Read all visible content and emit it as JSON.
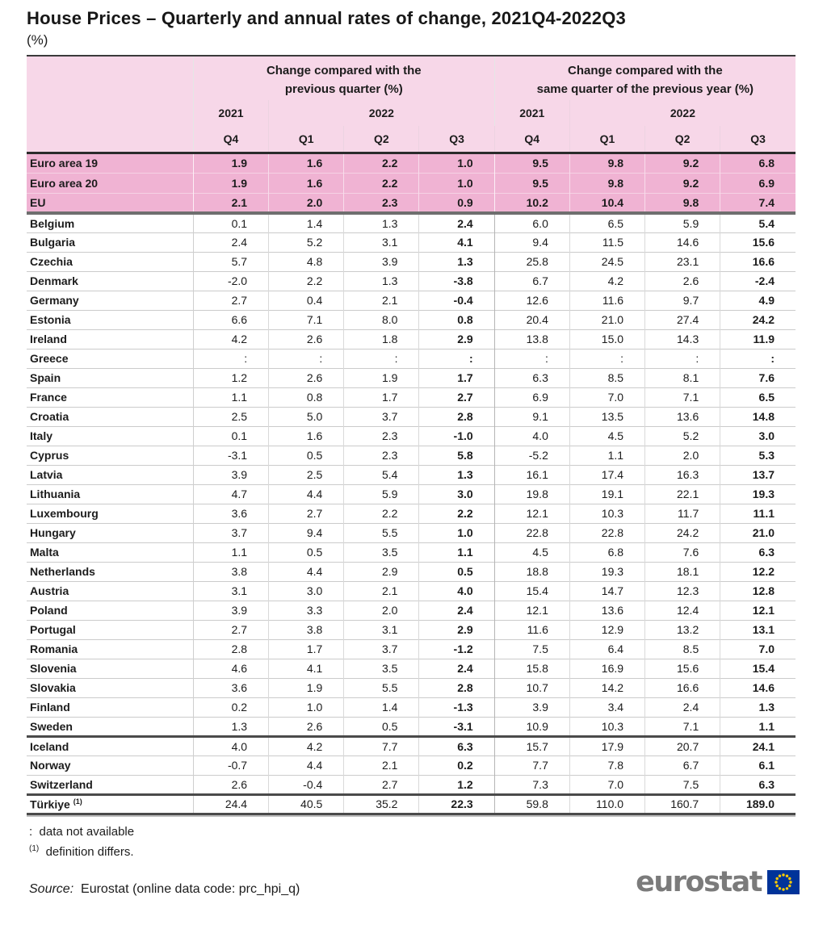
{
  "title": "House Prices – Quarterly and annual rates of change, 2021Q4-2022Q3",
  "unit_label": "(%)",
  "colors": {
    "header_background": "#f7d7e8",
    "aggregate_row_background": "#f0b3d3",
    "table_line_dark": "#3a3a3a",
    "logo_text_gray": "#7b7b7b",
    "eu_flag_blue": "#003399",
    "eu_star_yellow": "#ffcc00"
  },
  "chart_data": {
    "type": "table",
    "title": "House Prices – Quarterly and annual rates of change, 2021Q4-2022Q3",
    "unit": "%",
    "header": {
      "group1_line1": "Change compared with the",
      "group1_line2": "previous quarter (%)",
      "group2_line1": "Change compared with the",
      "group2_line2": "same quarter of the previous year (%)",
      "years": {
        "g1_y1": "2021",
        "g1_y2": "2022",
        "g2_y1": "2021",
        "g2_y2": "2022"
      },
      "quarters": [
        "Q4",
        "Q1",
        "Q2",
        "Q3",
        "Q4",
        "Q1",
        "Q2",
        "Q3"
      ]
    },
    "sections": [
      {
        "name": "aggregates",
        "rows": [
          {
            "label": "Euro area 19",
            "values": [
              "1.9",
              "1.6",
              "2.2",
              "1.0",
              "9.5",
              "9.8",
              "9.2",
              "6.8"
            ]
          },
          {
            "label": "Euro area 20",
            "values": [
              "1.9",
              "1.6",
              "2.2",
              "1.0",
              "9.5",
              "9.8",
              "9.2",
              "6.9"
            ]
          },
          {
            "label": "EU",
            "values": [
              "2.1",
              "2.0",
              "2.3",
              "0.9",
              "10.2",
              "10.4",
              "9.8",
              "7.4"
            ]
          }
        ]
      },
      {
        "name": "eu-members",
        "rows": [
          {
            "label": "Belgium",
            "values": [
              "0.1",
              "1.4",
              "1.3",
              "2.4",
              "6.0",
              "6.5",
              "5.9",
              "5.4"
            ]
          },
          {
            "label": "Bulgaria",
            "values": [
              "2.4",
              "5.2",
              "3.1",
              "4.1",
              "9.4",
              "11.5",
              "14.6",
              "15.6"
            ]
          },
          {
            "label": "Czechia",
            "values": [
              "5.7",
              "4.8",
              "3.9",
              "1.3",
              "25.8",
              "24.5",
              "23.1",
              "16.6"
            ]
          },
          {
            "label": "Denmark",
            "values": [
              "-2.0",
              "2.2",
              "1.3",
              "-3.8",
              "6.7",
              "4.2",
              "2.6",
              "-2.4"
            ]
          },
          {
            "label": "Germany",
            "values": [
              "2.7",
              "0.4",
              "2.1",
              "-0.4",
              "12.6",
              "11.6",
              "9.7",
              "4.9"
            ]
          },
          {
            "label": "Estonia",
            "values": [
              "6.6",
              "7.1",
              "8.0",
              "0.8",
              "20.4",
              "21.0",
              "27.4",
              "24.2"
            ]
          },
          {
            "label": "Ireland",
            "values": [
              "4.2",
              "2.6",
              "1.8",
              "2.9",
              "13.8",
              "15.0",
              "14.3",
              "11.9"
            ]
          },
          {
            "label": "Greece",
            "values": [
              ":",
              ":",
              ":",
              ":",
              ":",
              ":",
              ":",
              ":"
            ]
          },
          {
            "label": "Spain",
            "values": [
              "1.2",
              "2.6",
              "1.9",
              "1.7",
              "6.3",
              "8.5",
              "8.1",
              "7.6"
            ]
          },
          {
            "label": "France",
            "values": [
              "1.1",
              "0.8",
              "1.7",
              "2.7",
              "6.9",
              "7.0",
              "7.1",
              "6.5"
            ]
          },
          {
            "label": "Croatia",
            "values": [
              "2.5",
              "5.0",
              "3.7",
              "2.8",
              "9.1",
              "13.5",
              "13.6",
              "14.8"
            ]
          },
          {
            "label": "Italy",
            "values": [
              "0.1",
              "1.6",
              "2.3",
              "-1.0",
              "4.0",
              "4.5",
              "5.2",
              "3.0"
            ]
          },
          {
            "label": "Cyprus",
            "values": [
              "-3.1",
              "0.5",
              "2.3",
              "5.8",
              "-5.2",
              "1.1",
              "2.0",
              "5.3"
            ]
          },
          {
            "label": "Latvia",
            "values": [
              "3.9",
              "2.5",
              "5.4",
              "1.3",
              "16.1",
              "17.4",
              "16.3",
              "13.7"
            ]
          },
          {
            "label": "Lithuania",
            "values": [
              "4.7",
              "4.4",
              "5.9",
              "3.0",
              "19.8",
              "19.1",
              "22.1",
              "19.3"
            ]
          },
          {
            "label": "Luxembourg",
            "values": [
              "3.6",
              "2.7",
              "2.2",
              "2.2",
              "12.1",
              "10.3",
              "11.7",
              "11.1"
            ]
          },
          {
            "label": "Hungary",
            "values": [
              "3.7",
              "9.4",
              "5.5",
              "1.0",
              "22.8",
              "22.8",
              "24.2",
              "21.0"
            ]
          },
          {
            "label": "Malta",
            "values": [
              "1.1",
              "0.5",
              "3.5",
              "1.1",
              "4.5",
              "6.8",
              "7.6",
              "6.3"
            ]
          },
          {
            "label": "Netherlands",
            "values": [
              "3.8",
              "4.4",
              "2.9",
              "0.5",
              "18.8",
              "19.3",
              "18.1",
              "12.2"
            ]
          },
          {
            "label": "Austria",
            "values": [
              "3.1",
              "3.0",
              "2.1",
              "4.0",
              "15.4",
              "14.7",
              "12.3",
              "12.8"
            ]
          },
          {
            "label": "Poland",
            "values": [
              "3.9",
              "3.3",
              "2.0",
              "2.4",
              "12.1",
              "13.6",
              "12.4",
              "12.1"
            ]
          },
          {
            "label": "Portugal",
            "values": [
              "2.7",
              "3.8",
              "3.1",
              "2.9",
              "11.6",
              "12.9",
              "13.2",
              "13.1"
            ]
          },
          {
            "label": "Romania",
            "values": [
              "2.8",
              "1.7",
              "3.7",
              "-1.2",
              "7.5",
              "6.4",
              "8.5",
              "7.0"
            ]
          },
          {
            "label": "Slovenia",
            "values": [
              "4.6",
              "4.1",
              "3.5",
              "2.4",
              "15.8",
              "16.9",
              "15.6",
              "15.4"
            ]
          },
          {
            "label": "Slovakia",
            "values": [
              "3.6",
              "1.9",
              "5.5",
              "2.8",
              "10.7",
              "14.2",
              "16.6",
              "14.6"
            ]
          },
          {
            "label": "Finland",
            "values": [
              "0.2",
              "1.0",
              "1.4",
              "-1.3",
              "3.9",
              "3.4",
              "2.4",
              "1.3"
            ]
          },
          {
            "label": "Sweden",
            "values": [
              "1.3",
              "2.6",
              "0.5",
              "-3.1",
              "10.9",
              "10.3",
              "7.1",
              "1.1"
            ]
          }
        ]
      },
      {
        "name": "efta",
        "rows": [
          {
            "label": "Iceland",
            "values": [
              "4.0",
              "4.2",
              "7.7",
              "6.3",
              "15.7",
              "17.9",
              "20.7",
              "24.1"
            ]
          },
          {
            "label": "Norway",
            "values": [
              "-0.7",
              "4.4",
              "2.1",
              "0.2",
              "7.7",
              "7.8",
              "6.7",
              "6.1"
            ]
          },
          {
            "label": "Switzerland",
            "values": [
              "2.6",
              "-0.4",
              "2.7",
              "1.2",
              "7.3",
              "7.0",
              "7.5",
              "6.3"
            ]
          }
        ]
      },
      {
        "name": "candidate",
        "rows": [
          {
            "label": "Türkiye",
            "sup": "(1)",
            "values": [
              "24.4",
              "40.5",
              "35.2",
              "22.3",
              "59.8",
              "110.0",
              "160.7",
              "189.0"
            ]
          }
        ]
      }
    ]
  },
  "footnotes": [
    {
      "symbol": ":",
      "text": "data not available"
    },
    {
      "symbol": "(1)",
      "text": "definition differs."
    }
  ],
  "source": {
    "label": "Source:",
    "text": "Eurostat (online data code: prc_hpi_q)"
  },
  "logo": {
    "text": "eurostat",
    "flag_color": "#003399",
    "star_color": "#ffcc00"
  }
}
